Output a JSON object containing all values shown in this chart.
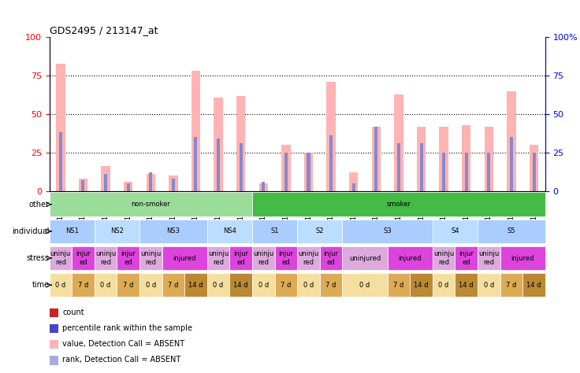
{
  "title": "GDS2495 / 213147_at",
  "samples": [
    "GSM122528",
    "GSM122531",
    "GSM122539",
    "GSM122540",
    "GSM122541",
    "GSM122542",
    "GSM122543",
    "GSM122544",
    "GSM122546",
    "GSM122527",
    "GSM122529",
    "GSM122530",
    "GSM122532",
    "GSM122533",
    "GSM122535",
    "GSM122536",
    "GSM122538",
    "GSM122534",
    "GSM122537",
    "GSM122545",
    "GSM122547",
    "GSM122548"
  ],
  "bar_values": [
    83,
    8,
    16,
    6,
    11,
    10,
    78,
    61,
    62,
    5,
    30,
    25,
    71,
    12,
    42,
    63,
    42,
    42,
    43,
    42,
    65,
    30
  ],
  "rank_values": [
    38,
    7,
    11,
    5,
    12,
    8,
    35,
    34,
    31,
    6,
    25,
    25,
    36,
    5,
    42,
    31,
    31,
    25,
    25,
    25,
    35,
    25
  ],
  "ylim": [
    0,
    100
  ],
  "bar_color": "#ffb3b3",
  "rank_color": "#8888cc",
  "grid_color": "black",
  "other_row": {
    "label": "other",
    "groups": [
      {
        "text": "non-smoker",
        "start": 0,
        "end": 8,
        "color": "#99dd99"
      },
      {
        "text": "smoker",
        "start": 9,
        "end": 21,
        "color": "#44bb44"
      }
    ]
  },
  "individual_row": {
    "label": "individual",
    "groups": [
      {
        "text": "NS1",
        "start": 0,
        "end": 1,
        "color": "#aaccff"
      },
      {
        "text": "NS2",
        "start": 2,
        "end": 3,
        "color": "#bbddff"
      },
      {
        "text": "NS3",
        "start": 4,
        "end": 6,
        "color": "#aaccff"
      },
      {
        "text": "NS4",
        "start": 7,
        "end": 8,
        "color": "#bbddff"
      },
      {
        "text": "S1",
        "start": 9,
        "end": 10,
        "color": "#aaccff"
      },
      {
        "text": "S2",
        "start": 11,
        "end": 12,
        "color": "#bbddff"
      },
      {
        "text": "S3",
        "start": 13,
        "end": 16,
        "color": "#aaccff"
      },
      {
        "text": "S4",
        "start": 17,
        "end": 18,
        "color": "#bbddff"
      },
      {
        "text": "S5",
        "start": 19,
        "end": 21,
        "color": "#aaccff"
      }
    ]
  },
  "stress_row": {
    "label": "stress",
    "groups": [
      {
        "text": "uninju\nred",
        "start": 0,
        "end": 0,
        "color": "#ddaadd"
      },
      {
        "text": "injur\ned",
        "start": 1,
        "end": 1,
        "color": "#dd44dd"
      },
      {
        "text": "uninju\nred",
        "start": 2,
        "end": 2,
        "color": "#ddaadd"
      },
      {
        "text": "injur\ned",
        "start": 3,
        "end": 3,
        "color": "#dd44dd"
      },
      {
        "text": "uninju\nred",
        "start": 4,
        "end": 4,
        "color": "#ddaadd"
      },
      {
        "text": "injured",
        "start": 5,
        "end": 6,
        "color": "#dd44dd"
      },
      {
        "text": "uninju\nred",
        "start": 7,
        "end": 7,
        "color": "#ddaadd"
      },
      {
        "text": "injur\ned",
        "start": 8,
        "end": 8,
        "color": "#dd44dd"
      },
      {
        "text": "uninju\nred",
        "start": 9,
        "end": 9,
        "color": "#ddaadd"
      },
      {
        "text": "injur\ned",
        "start": 10,
        "end": 10,
        "color": "#dd44dd"
      },
      {
        "text": "uninju\nred",
        "start": 11,
        "end": 11,
        "color": "#ddaadd"
      },
      {
        "text": "injur\ned",
        "start": 12,
        "end": 12,
        "color": "#dd44dd"
      },
      {
        "text": "uninjured",
        "start": 13,
        "end": 14,
        "color": "#ddaadd"
      },
      {
        "text": "injured",
        "start": 15,
        "end": 16,
        "color": "#dd44dd"
      },
      {
        "text": "uninju\nred",
        "start": 17,
        "end": 17,
        "color": "#ddaadd"
      },
      {
        "text": "injur\ned",
        "start": 18,
        "end": 18,
        "color": "#dd44dd"
      },
      {
        "text": "uninju\nred",
        "start": 19,
        "end": 19,
        "color": "#ddaadd"
      },
      {
        "text": "injured",
        "start": 20,
        "end": 21,
        "color": "#dd44dd"
      }
    ]
  },
  "time_row": {
    "label": "time",
    "groups": [
      {
        "text": "0 d",
        "start": 0,
        "end": 0,
        "color": "#f5dfa0"
      },
      {
        "text": "7 d",
        "start": 1,
        "end": 1,
        "color": "#ddaa55"
      },
      {
        "text": "0 d",
        "start": 2,
        "end": 2,
        "color": "#f5dfa0"
      },
      {
        "text": "7 d",
        "start": 3,
        "end": 3,
        "color": "#ddaa55"
      },
      {
        "text": "0 d",
        "start": 4,
        "end": 4,
        "color": "#f5dfa0"
      },
      {
        "text": "7 d",
        "start": 5,
        "end": 5,
        "color": "#ddaa55"
      },
      {
        "text": "14 d",
        "start": 6,
        "end": 6,
        "color": "#bb8833"
      },
      {
        "text": "0 d",
        "start": 7,
        "end": 7,
        "color": "#f5dfa0"
      },
      {
        "text": "14 d",
        "start": 8,
        "end": 8,
        "color": "#bb8833"
      },
      {
        "text": "0 d",
        "start": 9,
        "end": 9,
        "color": "#f5dfa0"
      },
      {
        "text": "7 d",
        "start": 10,
        "end": 10,
        "color": "#ddaa55"
      },
      {
        "text": "0 d",
        "start": 11,
        "end": 11,
        "color": "#f5dfa0"
      },
      {
        "text": "7 d",
        "start": 12,
        "end": 12,
        "color": "#ddaa55"
      },
      {
        "text": "0 d",
        "start": 13,
        "end": 14,
        "color": "#f5dfa0"
      },
      {
        "text": "7 d",
        "start": 15,
        "end": 15,
        "color": "#ddaa55"
      },
      {
        "text": "14 d",
        "start": 16,
        "end": 16,
        "color": "#bb8833"
      },
      {
        "text": "0 d",
        "start": 17,
        "end": 17,
        "color": "#f5dfa0"
      },
      {
        "text": "14 d",
        "start": 18,
        "end": 18,
        "color": "#bb8833"
      },
      {
        "text": "0 d",
        "start": 19,
        "end": 19,
        "color": "#f5dfa0"
      },
      {
        "text": "7 d",
        "start": 20,
        "end": 20,
        "color": "#ddaa55"
      },
      {
        "text": "14 d",
        "start": 21,
        "end": 21,
        "color": "#bb8833"
      }
    ]
  },
  "legend_items": [
    {
      "label": "count",
      "color": "#cc2222",
      "marker": "s"
    },
    {
      "label": "percentile rank within the sample",
      "color": "#4444cc",
      "marker": "s"
    },
    {
      "label": "value, Detection Call = ABSENT",
      "color": "#ffb3b3",
      "marker": "s"
    },
    {
      "label": "rank, Detection Call = ABSENT",
      "color": "#aaaadd",
      "marker": "s"
    }
  ]
}
